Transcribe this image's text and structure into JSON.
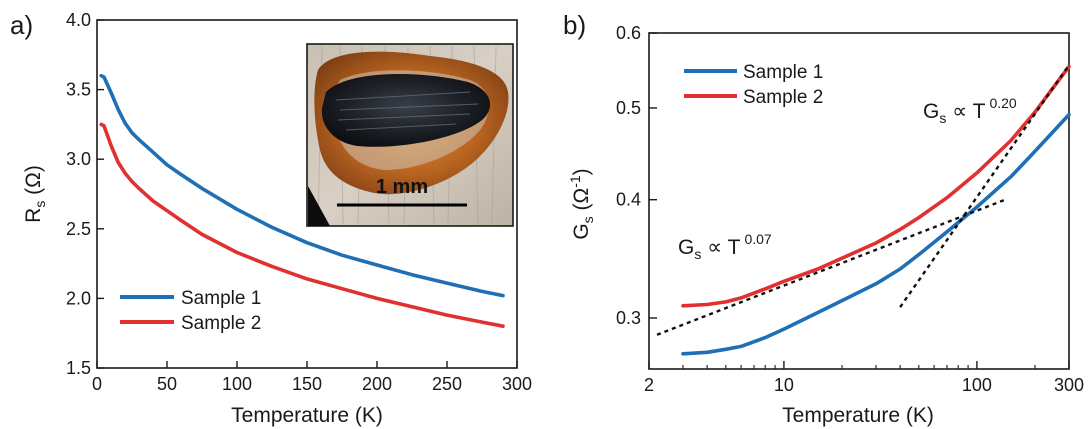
{
  "chart_data": [
    {
      "type": "line",
      "panel_label": "a)",
      "xlabel": "Temperature (K)",
      "ylabel": {
        "main": "R",
        "sub": "s",
        "rest": " (Ω)"
      },
      "xlim": [
        0,
        300
      ],
      "ylim": [
        1.5,
        4.0
      ],
      "xticks": [
        0,
        50,
        100,
        150,
        200,
        250,
        300
      ],
      "yticks": [
        "1.5",
        "2.0",
        "2.5",
        "3.0",
        "3.5",
        "4.0"
      ],
      "grid": false,
      "legend_position": "bottom-left",
      "series": [
        {
          "name": "Sample 1",
          "color": "#1f6fb5",
          "x": [
            3,
            5,
            10,
            15,
            20,
            25,
            30,
            40,
            50,
            60,
            75,
            100,
            125,
            150,
            175,
            200,
            225,
            250,
            275,
            290
          ],
          "y": [
            3.6,
            3.59,
            3.48,
            3.36,
            3.26,
            3.19,
            3.14,
            3.05,
            2.96,
            2.89,
            2.79,
            2.64,
            2.51,
            2.4,
            2.31,
            2.24,
            2.17,
            2.11,
            2.05,
            2.02
          ]
        },
        {
          "name": "Sample 2",
          "color": "#e03030",
          "x": [
            3,
            5,
            10,
            15,
            20,
            25,
            30,
            40,
            50,
            60,
            75,
            100,
            125,
            150,
            175,
            200,
            225,
            250,
            275,
            290
          ],
          "y": [
            3.25,
            3.24,
            3.1,
            2.98,
            2.9,
            2.84,
            2.79,
            2.7,
            2.63,
            2.56,
            2.46,
            2.33,
            2.23,
            2.14,
            2.07,
            2.0,
            1.94,
            1.88,
            1.83,
            1.8
          ]
        }
      ],
      "inset": {
        "type": "photo",
        "scale_bar_label": "1 mm"
      }
    },
    {
      "type": "line",
      "panel_label": "b)",
      "xlabel": "Temperature (K)",
      "ylabel": {
        "main": "G",
        "sub": "s",
        "rest1": " (Ω",
        "sup": "-1",
        "rest2": ")"
      },
      "x_scale": "log",
      "y_scale": "log",
      "xlim": [
        2,
        300
      ],
      "ylim": [
        0.265,
        0.6
      ],
      "xticks": [
        2,
        10,
        100,
        300
      ],
      "yticks": [
        "0.3",
        "0.4",
        "0.5",
        "0.6"
      ],
      "grid": false,
      "legend_position": "top-left",
      "series": [
        {
          "name": "Sample 1",
          "color": "#1f6fb5",
          "x": [
            3,
            4,
            5,
            6,
            8,
            10,
            15,
            20,
            30,
            40,
            50,
            70,
            100,
            150,
            200,
            300
          ],
          "y": [
            0.275,
            0.276,
            0.278,
            0.28,
            0.286,
            0.292,
            0.304,
            0.313,
            0.326,
            0.338,
            0.35,
            0.37,
            0.393,
            0.423,
            0.45,
            0.492
          ]
        },
        {
          "name": "Sample 2",
          "color": "#e03030",
          "x": [
            3,
            4,
            5,
            6,
            8,
            10,
            15,
            20,
            30,
            40,
            50,
            70,
            100,
            150,
            200,
            300
          ],
          "y": [
            0.309,
            0.31,
            0.312,
            0.315,
            0.322,
            0.328,
            0.338,
            0.347,
            0.36,
            0.372,
            0.383,
            0.402,
            0.427,
            0.462,
            0.495,
            0.553
          ]
        }
      ],
      "fits": [
        {
          "x": [
            2.2,
            140
          ],
          "y": [
            0.288,
            0.4
          ],
          "color": "#111111"
        },
        {
          "x": [
            40,
            300
          ],
          "y": [
            0.308,
            0.555
          ],
          "color": "#111111"
        }
      ],
      "annotations": [
        {
          "base": "G",
          "sub": "s",
          "op": " ∝ T",
          "exp": "0.07",
          "at": [
            2.6,
            0.339
          ]
        },
        {
          "base": "G",
          "sub": "s",
          "op": " ∝ T",
          "exp": "0.20",
          "at": [
            120,
            0.485
          ]
        }
      ]
    }
  ]
}
